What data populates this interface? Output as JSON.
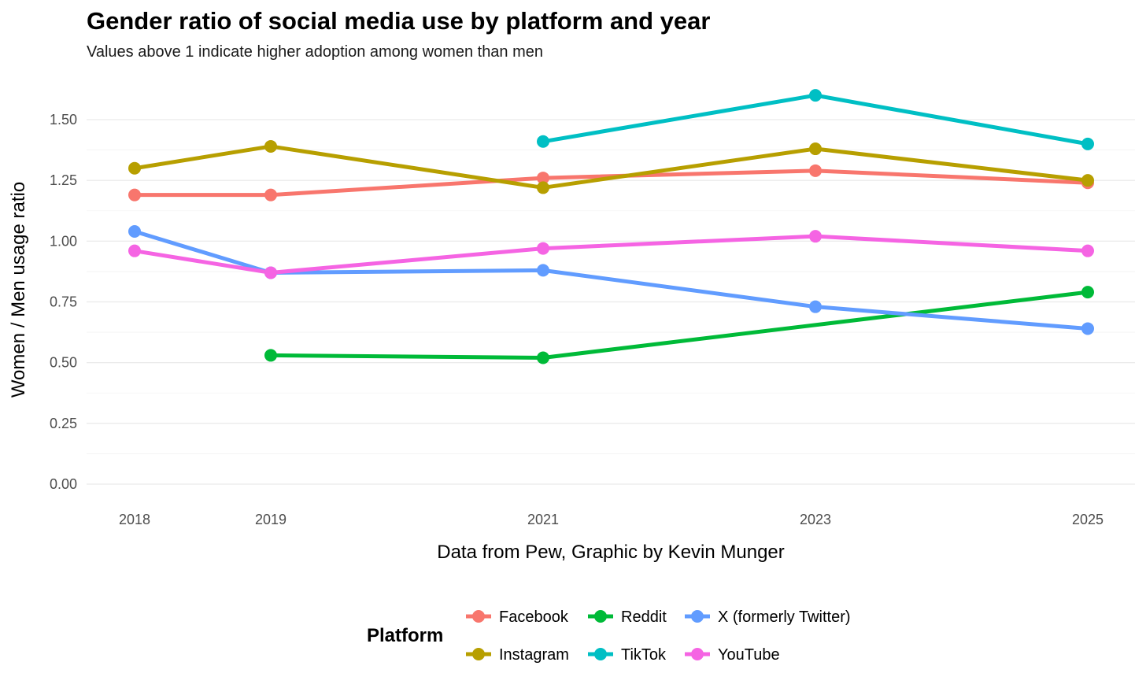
{
  "chart_data": {
    "type": "line",
    "title": "Gender ratio of social media use by platform and year",
    "subtitle": "Values above 1 indicate higher adoption among women than men",
    "xlabel": "Data from Pew, Graphic by Kevin Munger",
    "ylabel": "Women / Men usage ratio",
    "x_ticks": [
      "2018",
      "2019",
      "2021",
      "2023",
      "2025"
    ],
    "xlim": [
      2017.9,
      2025.2
    ],
    "y_ticks": [
      "0.00",
      "0.25",
      "0.50",
      "0.75",
      "1.00",
      "1.25",
      "1.50"
    ],
    "ylim": [
      0,
      1.6
    ],
    "legend_title": "Platform",
    "legend_position": "bottom",
    "series": [
      {
        "name": "Facebook",
        "color": "#F8766D",
        "x": [
          2018,
          2019,
          2021,
          2023,
          2025
        ],
        "values": [
          1.19,
          1.19,
          1.26,
          1.29,
          1.24
        ]
      },
      {
        "name": "Instagram",
        "color": "#B79F00",
        "x": [
          2018,
          2019,
          2021,
          2023,
          2025
        ],
        "values": [
          1.3,
          1.39,
          1.22,
          1.38,
          1.25
        ]
      },
      {
        "name": "Reddit",
        "color": "#00BA38",
        "x": [
          2019,
          2021,
          2025
        ],
        "values": [
          0.53,
          0.52,
          0.79
        ]
      },
      {
        "name": "TikTok",
        "color": "#00BFC4",
        "x": [
          2021,
          2023,
          2025
        ],
        "values": [
          1.41,
          1.6,
          1.4
        ]
      },
      {
        "name": "X (formerly Twitter)",
        "color": "#619CFF",
        "x": [
          2018,
          2019,
          2021,
          2023,
          2025
        ],
        "values": [
          1.04,
          0.87,
          0.88,
          0.73,
          0.64
        ]
      },
      {
        "name": "YouTube",
        "color": "#F564E3",
        "x": [
          2018,
          2019,
          2021,
          2023,
          2025
        ],
        "values": [
          0.96,
          0.87,
          0.97,
          1.02,
          0.96
        ]
      }
    ]
  }
}
